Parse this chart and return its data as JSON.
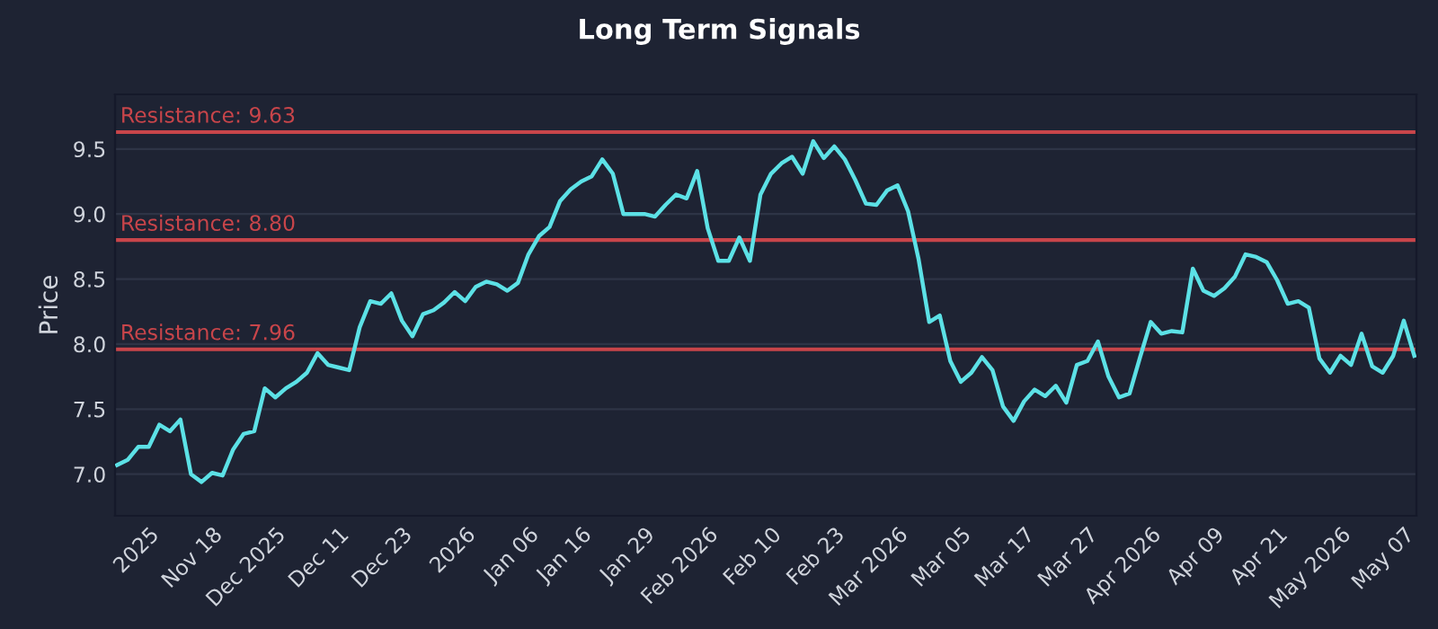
{
  "chart_data": {
    "type": "line",
    "title": "Long Term Signals",
    "ylabel": "Price",
    "ylim": [
      6.68,
      9.92
    ],
    "categories": [
      null,
      null,
      null,
      "2025",
      null,
      null,
      null,
      null,
      null,
      "Nov 18",
      null,
      null,
      null,
      null,
      null,
      "Dec 2025",
      null,
      null,
      null,
      null,
      null,
      "Dec 11",
      null,
      null,
      null,
      null,
      null,
      "Dec 23",
      null,
      null,
      null,
      null,
      null,
      "2026",
      null,
      null,
      null,
      null,
      null,
      "Jan 06",
      null,
      null,
      null,
      null,
      "Jan 16",
      null,
      null,
      null,
      null,
      null,
      "Jan 29",
      null,
      null,
      null,
      null,
      null,
      "Feb 2026",
      null,
      null,
      null,
      null,
      null,
      "Feb 10",
      null,
      null,
      null,
      null,
      null,
      "Feb 23",
      null,
      null,
      null,
      null,
      null,
      "Mar 2026",
      null,
      null,
      null,
      null,
      null,
      "Mar 05",
      null,
      null,
      null,
      null,
      null,
      "Mar 17",
      null,
      null,
      null,
      null,
      null,
      "Mar 27",
      null,
      null,
      null,
      null,
      null,
      "Apr 2026",
      null,
      null,
      null,
      null,
      null,
      "Apr 09",
      null,
      null,
      null,
      null,
      null,
      "Apr 21",
      null,
      null,
      null,
      null,
      null,
      "May 2026",
      null,
      null,
      null,
      null,
      null,
      "May 07",
      null
    ],
    "yticks": [
      {
        "value": 7,
        "label": "7.0"
      },
      {
        "value": 7.5,
        "label": "7.5"
      },
      {
        "value": 8,
        "label": "8.0"
      },
      {
        "value": 8.5,
        "label": "8.5"
      },
      {
        "value": 9,
        "label": "9.0"
      },
      {
        "value": 9.5,
        "label": "9.5"
      }
    ],
    "grid": "y",
    "line_style": "solid",
    "ref_lines": [
      {
        "axis": "y",
        "value": 9.63,
        "label": "Resistance: 9.63",
        "color": "#c8454a"
      },
      {
        "axis": "y",
        "value": 8.8,
        "label": "Resistance: 8.80",
        "color": "#c8454a"
      },
      {
        "axis": "y",
        "value": 7.96,
        "label": "Resistance: 7.96",
        "color": "#c8454a"
      }
    ],
    "series": [
      {
        "color": "#5ce1e6",
        "values": [
          7.07,
          7.11,
          7.21,
          7.21,
          7.38,
          7.33,
          7.42,
          7.0,
          6.94,
          7.01,
          6.99,
          7.19,
          7.31,
          7.33,
          7.66,
          7.59,
          7.66,
          7.71,
          7.78,
          7.93,
          7.84,
          7.82,
          7.8,
          8.13,
          8.33,
          8.31,
          8.39,
          8.18,
          8.06,
          8.23,
          8.26,
          8.32,
          8.4,
          8.33,
          8.44,
          8.48,
          8.46,
          8.41,
          8.47,
          8.69,
          8.83,
          8.9,
          9.1,
          9.19,
          9.25,
          9.29,
          9.42,
          9.31,
          9.0,
          9.0,
          9.0,
          8.98,
          9.07,
          9.15,
          9.12,
          9.33,
          8.89,
          8.64,
          8.64,
          8.82,
          8.64,
          9.15,
          9.31,
          9.39,
          9.44,
          9.31,
          9.56,
          9.43,
          9.52,
          9.42,
          9.26,
          9.08,
          9.07,
          9.18,
          9.22,
          9.02,
          8.65,
          8.17,
          8.22,
          7.87,
          7.71,
          7.78,
          7.9,
          7.8,
          7.52,
          7.41,
          7.56,
          7.65,
          7.6,
          7.68,
          7.55,
          7.84,
          7.87,
          8.02,
          7.75,
          7.59,
          7.62,
          7.9,
          8.17,
          8.08,
          8.1,
          8.09,
          8.58,
          8.41,
          8.37,
          8.43,
          8.52,
          8.69,
          8.67,
          8.63,
          8.49,
          8.31,
          8.33,
          8.28,
          7.89,
          7.78,
          7.91,
          7.84,
          8.08,
          7.83,
          7.78,
          7.91,
          8.18,
          7.91
        ]
      }
    ]
  }
}
